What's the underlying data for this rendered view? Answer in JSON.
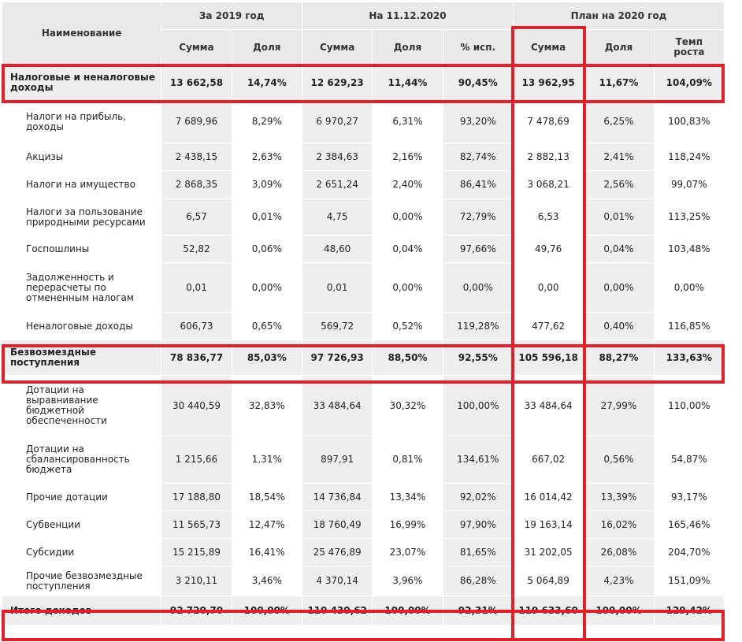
{
  "header": {
    "name": "Наименование",
    "group_2019": "За 2019 год",
    "group_current": "На 11.12.2020",
    "group_plan": "План на 2020 год",
    "sum": "Сумма",
    "share": "Доля",
    "exec": "% исп.",
    "growth": "Темп роста"
  },
  "rows": [
    {
      "name": "Налоговые и неналоговые доходы",
      "v": [
        "13 662,58",
        "14,74%",
        "12 629,23",
        "11,44%",
        "90,45%",
        "13 962,95",
        "11,67%",
        "104,09%"
      ]
    },
    {
      "name": "Налоги на прибыль, доходы",
      "v": [
        "7 689,96",
        "8,29%",
        "6 970,27",
        "6,31%",
        "93,20%",
        "7 478,69",
        "6,25%",
        "100,83%"
      ]
    },
    {
      "name": "Акцизы",
      "v": [
        "2 438,15",
        "2,63%",
        "2 384,63",
        "2,16%",
        "82,74%",
        "2 882,13",
        "2,41%",
        "118,24%"
      ]
    },
    {
      "name": "Налоги на имущество",
      "v": [
        "2 868,35",
        "3,09%",
        "2 651,24",
        "2,40%",
        "86,41%",
        "3 068,21",
        "2,56%",
        "99,07%"
      ]
    },
    {
      "name": "Налоги за пользование природными ресурсами",
      "v": [
        "6,57",
        "0,01%",
        "4,75",
        "0,00%",
        "72,79%",
        "6,53",
        "0,01%",
        "113,25%"
      ]
    },
    {
      "name": "Госпошлины",
      "v": [
        "52,82",
        "0,06%",
        "48,60",
        "0,04%",
        "97,66%",
        "49,76",
        "0,04%",
        "103,48%"
      ]
    },
    {
      "name": "Задолженность и перерасчеты по отмененным налогам",
      "v": [
        "0,01",
        "0,00%",
        "0,01",
        "0,00%",
        "0,00%",
        "0,00",
        "0,00%",
        "0,00%"
      ]
    },
    {
      "name": "Неналоговые доходы",
      "v": [
        "606,73",
        "0,65%",
        "569,72",
        "0,52%",
        "119,28%",
        "477,62",
        "0,40%",
        "116,85%"
      ]
    },
    {
      "name": "Безвозмездные поступления",
      "v": [
        "78 836,77",
        "85,03%",
        "97 726,93",
        "88,50%",
        "92,55%",
        "105 596,18",
        "88,27%",
        "133,63%"
      ]
    },
    {
      "name": "Дотации на выравнивание бюджетной обеспеченности",
      "v": [
        "30 440,59",
        "32,83%",
        "33 484,64",
        "30,32%",
        "100,00%",
        "33 484,64",
        "27,99%",
        "110,00%"
      ]
    },
    {
      "name": "Дотации на сбалансированность бюджета",
      "v": [
        "1 215,66",
        "1,31%",
        "897,91",
        "0,81%",
        "134,61%",
        "667,02",
        "0,56%",
        "54,87%"
      ]
    },
    {
      "name": "Прочие дотации",
      "v": [
        "17 188,80",
        "18,54%",
        "14 736,84",
        "13,34%",
        "92,02%",
        "16 014,42",
        "13,39%",
        "93,17%"
      ]
    },
    {
      "name": "Субвенции",
      "v": [
        "11 565,73",
        "12,47%",
        "18 760,49",
        "16,99%",
        "97,90%",
        "19 163,14",
        "16,02%",
        "165,46%"
      ]
    },
    {
      "name": "Субсидии",
      "v": [
        "15 215,89",
        "16,41%",
        "25 476,89",
        "23,07%",
        "81,65%",
        "31 202,05",
        "26,08%",
        "204,70%"
      ]
    },
    {
      "name": "Прочие безвозмездные поступления",
      "v": [
        "3 210,11",
        "3,46%",
        "4 370,14",
        "3,96%",
        "86,28%",
        "5 064,89",
        "4,23%",
        "151,09%"
      ]
    },
    {
      "name": "Итого доходов",
      "v": [
        "92 720,70",
        "100,00%",
        "110 430,62",
        "100,00%",
        "92,31%",
        "119 633,60",
        "100,00%",
        "129,42%"
      ]
    }
  ],
  "colors": {
    "highlight": "#e0202a",
    "cell_gray": "#eeeeee",
    "header_gray": "#e9e9e9"
  }
}
